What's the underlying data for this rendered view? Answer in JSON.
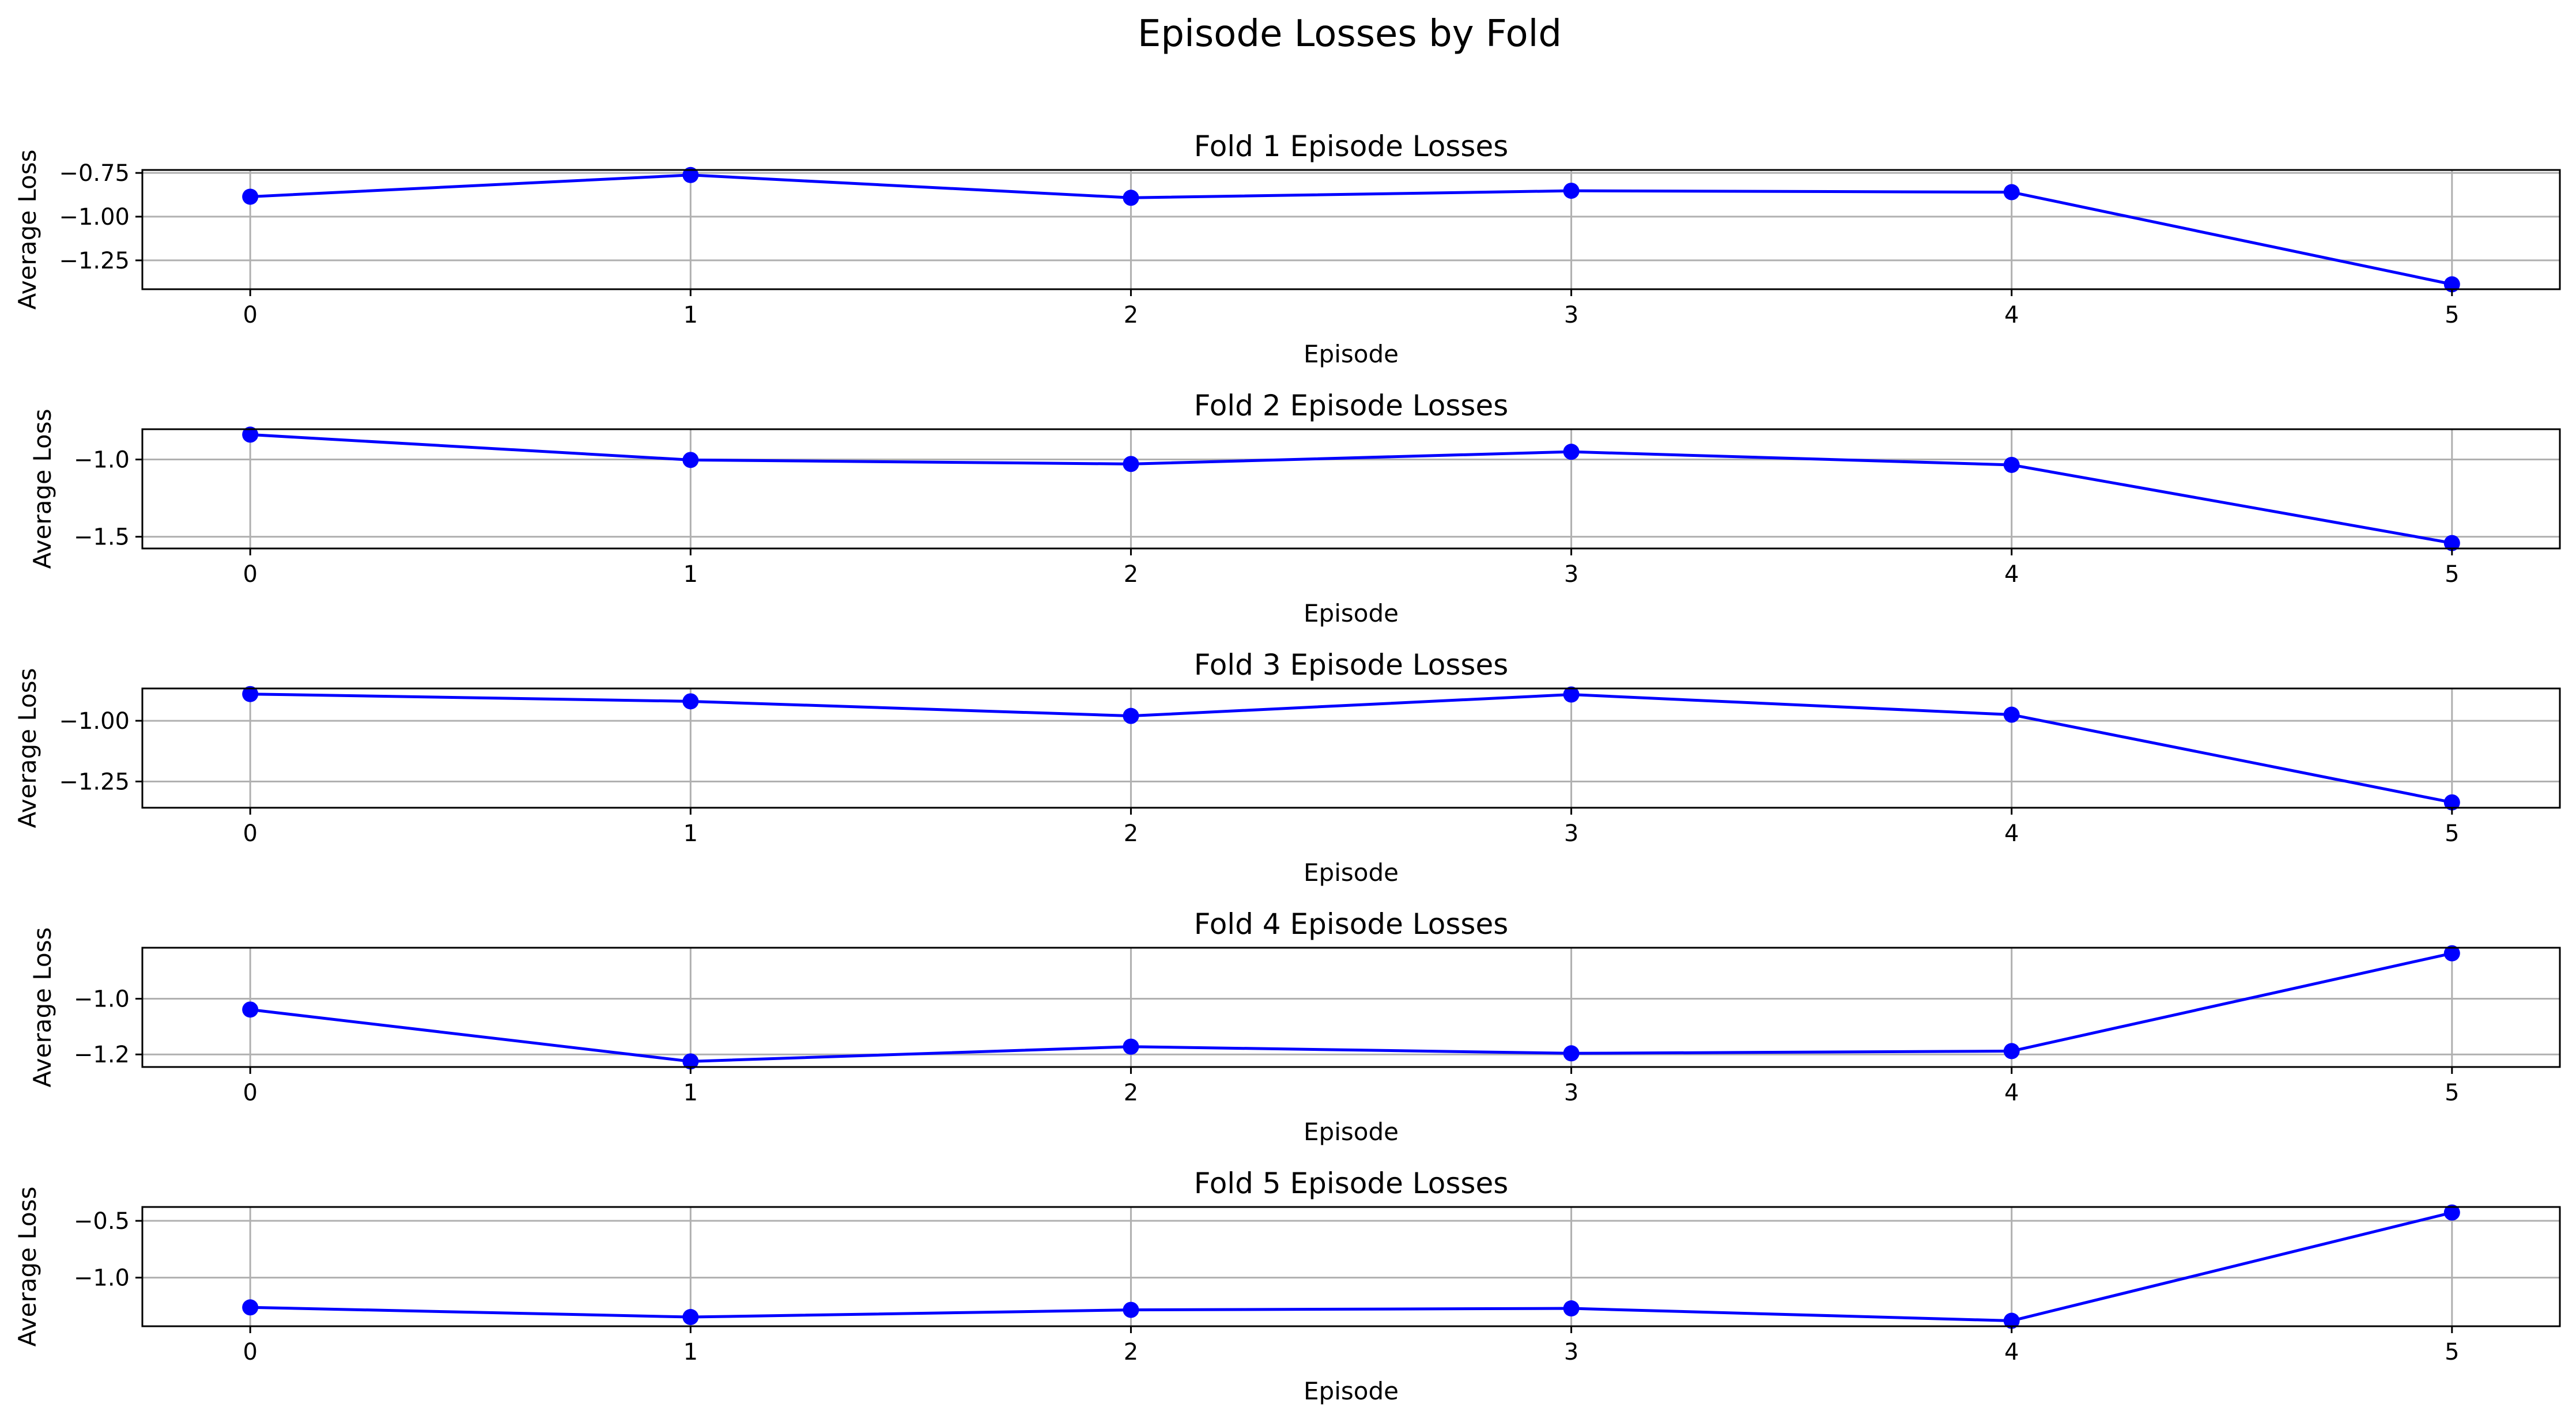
{
  "chart_data": {
    "type": "line",
    "title": "Episode Losses by Fold",
    "series_color": "#0000ff",
    "grid": true,
    "panels": [
      {
        "title": "Fold 1 Episode Losses",
        "xlabel": "Episode",
        "ylabel": "Average Loss",
        "x": [
          0,
          1,
          2,
          3,
          4,
          5
        ],
        "y": [
          -0.886,
          -0.762,
          -0.892,
          -0.852,
          -0.86,
          -1.387
        ],
        "xticks": [
          "0",
          "1",
          "2",
          "3",
          "4",
          "5"
        ],
        "yticks": [
          -0.75,
          -1.0,
          -1.25
        ],
        "ytick_labels": [
          "−0.75",
          "−1.00",
          "−1.25"
        ],
        "xlim": [
          -0.245,
          5.245
        ],
        "ylim": [
          -1.415,
          -0.733
        ]
      },
      {
        "title": "Fold 2 Episode Losses",
        "xlabel": "Episode",
        "ylabel": "Average Loss",
        "x": [
          0,
          1,
          2,
          3,
          4,
          5
        ],
        "y": [
          -0.839,
          -1.003,
          -1.029,
          -0.95,
          -1.035,
          -1.541
        ],
        "xticks": [
          "0",
          "1",
          "2",
          "3",
          "4",
          "5"
        ],
        "yticks": [
          -1.0,
          -1.5
        ],
        "ytick_labels": [
          "−1.0",
          "−1.5"
        ],
        "xlim": [
          -0.245,
          5.245
        ],
        "ylim": [
          -1.576,
          -0.804
        ]
      },
      {
        "title": "Fold 3 Episode Losses",
        "xlabel": "Episode",
        "ylabel": "Average Loss",
        "x": [
          0,
          1,
          2,
          3,
          4,
          5
        ],
        "y": [
          -0.89,
          -0.92,
          -0.98,
          -0.892,
          -0.975,
          -1.336
        ],
        "xticks": [
          "0",
          "1",
          "2",
          "3",
          "4",
          "5"
        ],
        "yticks": [
          -1.0,
          -1.25
        ],
        "ytick_labels": [
          "−1.00",
          "−1.25"
        ],
        "xlim": [
          -0.245,
          5.245
        ],
        "ylim": [
          -1.358,
          -0.867
        ]
      },
      {
        "title": "Fold 4 Episode Losses",
        "xlabel": "Episode",
        "ylabel": "Average Loss",
        "x": [
          0,
          1,
          2,
          3,
          4,
          5
        ],
        "y": [
          -1.039,
          -1.225,
          -1.172,
          -1.196,
          -1.188,
          -0.837
        ],
        "xticks": [
          "0",
          "1",
          "2",
          "3",
          "4",
          "5"
        ],
        "yticks": [
          -1.0,
          -1.2
        ],
        "ytick_labels": [
          "−1.0",
          "−1.2"
        ],
        "xlim": [
          -0.245,
          5.245
        ],
        "ylim": [
          -1.245,
          -0.817
        ]
      },
      {
        "title": "Fold 5 Episode Losses",
        "xlabel": "Episode",
        "ylabel": "Average Loss",
        "x": [
          0,
          1,
          2,
          3,
          4,
          5
        ],
        "y": [
          -1.262,
          -1.347,
          -1.284,
          -1.271,
          -1.38,
          -0.427
        ],
        "xticks": [
          "0",
          "1",
          "2",
          "3",
          "4",
          "5"
        ],
        "yticks": [
          -0.5,
          -1.0
        ],
        "ytick_labels": [
          "−0.5",
          "−1.0"
        ],
        "xlim": [
          -0.245,
          5.245
        ],
        "ylim": [
          -1.428,
          -0.378
        ]
      }
    ]
  }
}
